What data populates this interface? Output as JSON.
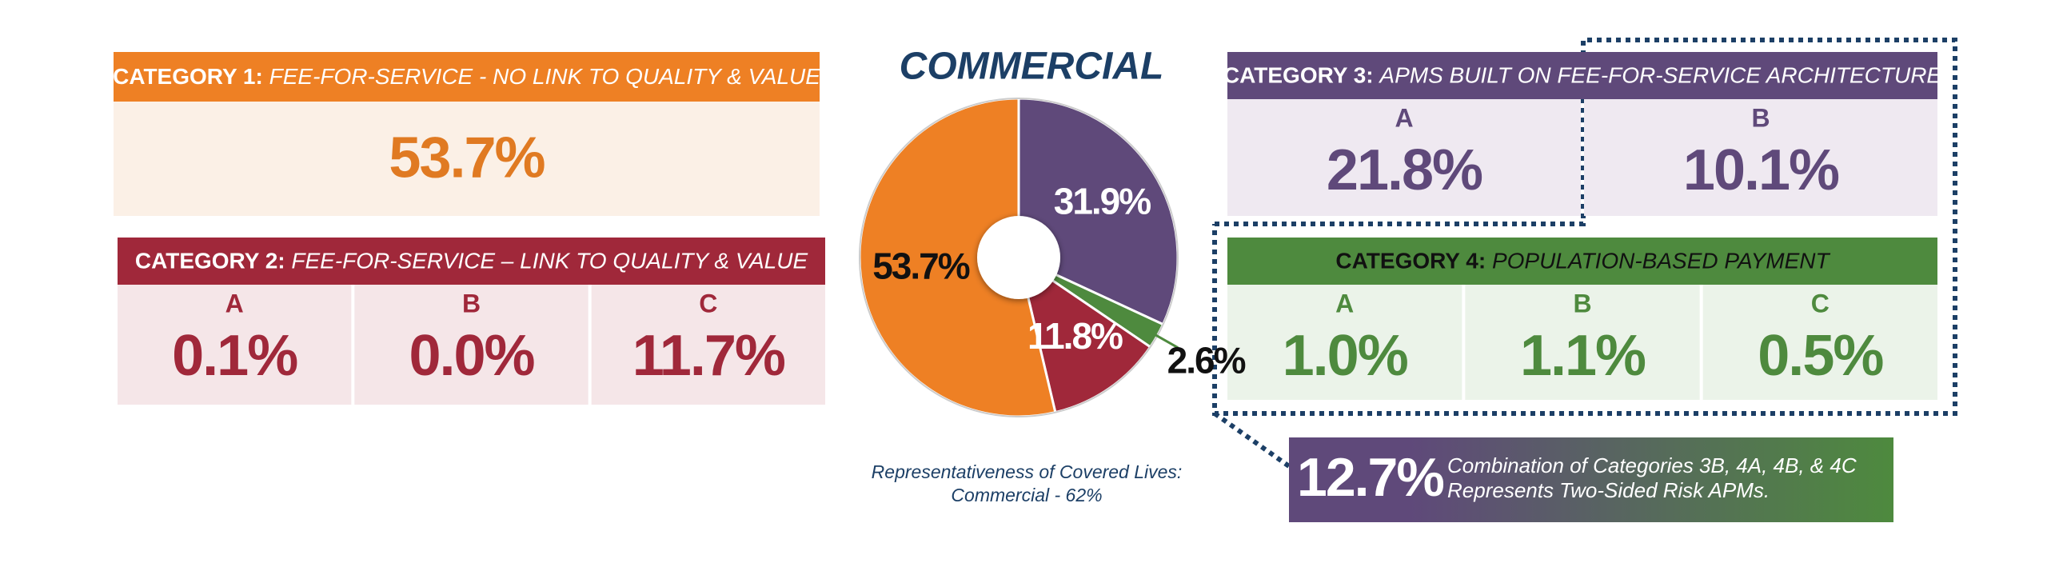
{
  "chart_data": {
    "type": "pie",
    "title": "COMMERCIAL",
    "values": [
      31.9,
      2.6,
      11.8,
      53.7
    ],
    "value_labels": [
      "31.9%",
      "2.6%",
      "11.8%",
      "53.7%"
    ],
    "colors": [
      "#5f497a",
      "#4e8a3e",
      "#a0283a",
      "#ee8024"
    ],
    "caption": [
      "Representativeness of Covered Lives:",
      "Commercial - 62%"
    ]
  },
  "panels": [
    {
      "label": "CATEGORY 1:",
      "title": "FEE-FOR-SERVICE - NO LINK TO QUALITY & VALUE",
      "columns": [
        {
          "value": "53.7%"
        }
      ]
    },
    {
      "label": "CATEGORY 2:",
      "title": "FEE-FOR-SERVICE – LINK TO QUALITY & VALUE",
      "columns": [
        {
          "letter": "A",
          "value": "0.1%"
        },
        {
          "letter": "B",
          "value": "0.0%"
        },
        {
          "letter": "C",
          "value": "11.7%"
        }
      ]
    },
    {
      "label": "CATEGORY 3:",
      "title": "APMS BUILT ON FEE-FOR-SERVICE ARCHITECTURE",
      "columns": [
        {
          "letter": "A",
          "value": "21.8%"
        },
        {
          "letter": "B",
          "value": "10.1%"
        }
      ]
    },
    {
      "label": "CATEGORY 4:",
      "title": "POPULATION-BASED PAYMENT",
      "columns": [
        {
          "letter": "A",
          "value": "1.0%"
        },
        {
          "letter": "B",
          "value": "1.1%"
        },
        {
          "letter": "C",
          "value": "0.5%"
        }
      ]
    }
  ],
  "combination": {
    "value": "12.7%",
    "lines": [
      "Combination of Categories 3B, 4A, 4B, & 4C",
      "Represents Two-Sided Risk APMs."
    ]
  }
}
